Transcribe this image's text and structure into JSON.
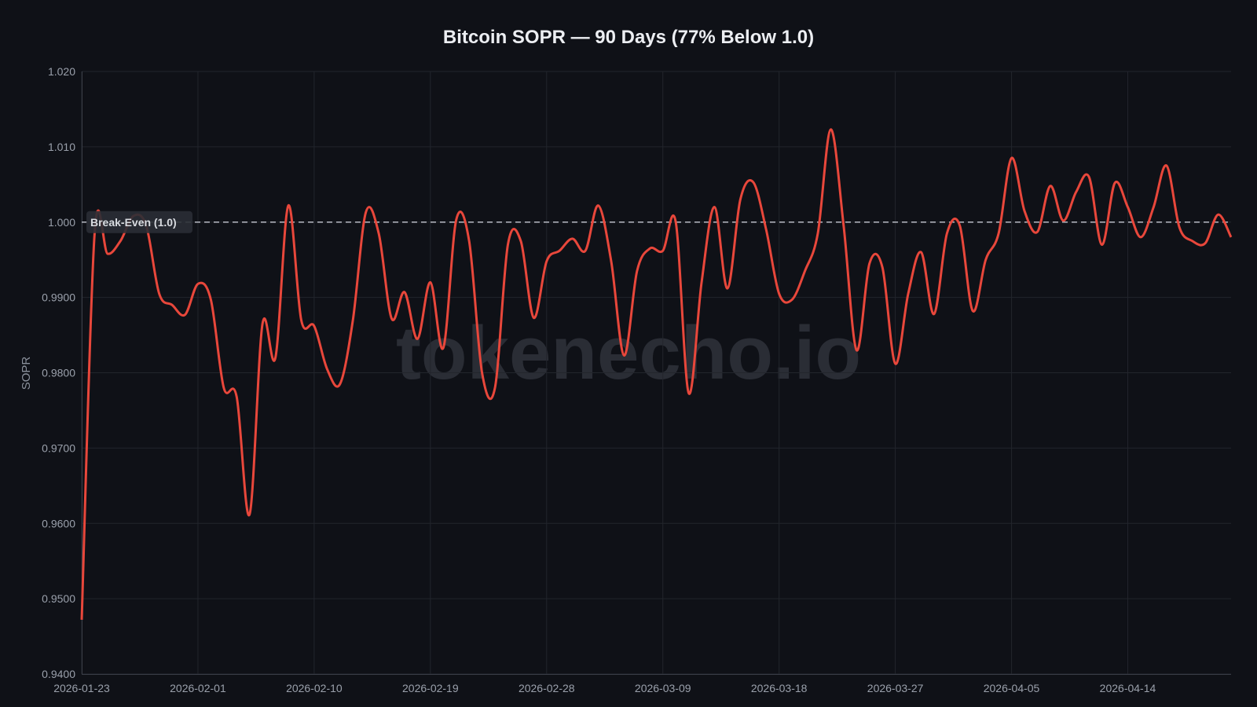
{
  "chart_data": {
    "type": "line",
    "title": "Bitcoin SOPR — 90 Days (77% Below 1.0)",
    "xlabel": "",
    "ylabel": "SOPR",
    "ylim": [
      0.94,
      1.02
    ],
    "grid": true,
    "y_ticks": [
      {
        "value": 1.02,
        "label": "1.020"
      },
      {
        "value": 1.01,
        "label": "1.010"
      },
      {
        "value": 1.0,
        "label": "1.000"
      },
      {
        "value": 0.99,
        "label": "0.9900"
      },
      {
        "value": 0.98,
        "label": "0.9800"
      },
      {
        "value": 0.97,
        "label": "0.9700"
      },
      {
        "value": 0.96,
        "label": "0.9600"
      },
      {
        "value": 0.95,
        "label": "0.9500"
      },
      {
        "value": 0.94,
        "label": "0.9400"
      }
    ],
    "x_ticks": [
      "2026-01-23",
      "2026-02-01",
      "2026-02-10",
      "2026-02-19",
      "2026-02-28",
      "2026-03-09",
      "2026-03-18",
      "2026-03-27",
      "2026-04-05",
      "2026-04-14"
    ],
    "reference_line": {
      "value": 1.0,
      "label": "Break-Even (1.0)",
      "style": "dashed",
      "color": "#b8bcc4"
    },
    "watermark": "tokenecho.io",
    "series": [
      {
        "color": "#e8473b",
        "x": [
          "2026-01-23",
          "2026-01-24",
          "2026-01-25",
          "2026-01-26",
          "2026-01-27",
          "2026-01-28",
          "2026-01-29",
          "2026-01-30",
          "2026-01-31",
          "2026-02-01",
          "2026-02-02",
          "2026-02-03",
          "2026-02-04",
          "2026-02-05",
          "2026-02-06",
          "2026-02-07",
          "2026-02-08",
          "2026-02-09",
          "2026-02-10",
          "2026-02-11",
          "2026-02-12",
          "2026-02-13",
          "2026-02-14",
          "2026-02-15",
          "2026-02-16",
          "2026-02-17",
          "2026-02-18",
          "2026-02-19",
          "2026-02-20",
          "2026-02-21",
          "2026-02-22",
          "2026-02-23",
          "2026-02-24",
          "2026-02-25",
          "2026-02-26",
          "2026-02-27",
          "2026-02-28",
          "2026-03-01",
          "2026-03-02",
          "2026-03-03",
          "2026-03-04",
          "2026-03-05",
          "2026-03-06",
          "2026-03-07",
          "2026-03-08",
          "2026-03-09",
          "2026-03-10",
          "2026-03-11",
          "2026-03-12",
          "2026-03-13",
          "2026-03-14",
          "2026-03-15",
          "2026-03-16",
          "2026-03-17",
          "2026-03-18",
          "2026-03-19",
          "2026-03-20",
          "2026-03-21",
          "2026-03-22",
          "2026-03-23",
          "2026-03-24",
          "2026-03-25",
          "2026-03-26",
          "2026-03-27",
          "2026-03-28",
          "2026-03-29",
          "2026-03-30",
          "2026-03-31",
          "2026-04-01",
          "2026-04-02",
          "2026-04-03",
          "2026-04-04",
          "2026-04-05",
          "2026-04-06",
          "2026-04-07",
          "2026-04-08",
          "2026-04-09",
          "2026-04-10",
          "2026-04-11",
          "2026-04-12",
          "2026-04-13",
          "2026-04-14",
          "2026-04-15",
          "2026-04-16",
          "2026-04-17",
          "2026-04-18",
          "2026-04-19",
          "2026-04-20",
          "2026-04-21",
          "2026-04-22"
        ],
        "values": [
          0.9472,
          0.9985,
          0.9958,
          0.9975,
          1.0008,
          0.9995,
          0.9905,
          0.989,
          0.9877,
          0.9918,
          0.9897,
          0.978,
          0.9768,
          0.9612,
          0.9865,
          0.982,
          1.0022,
          0.987,
          0.9862,
          0.9805,
          0.9785,
          0.987,
          1.0013,
          0.9985,
          0.9872,
          0.9907,
          0.9845,
          0.992,
          0.9833,
          1.0003,
          0.9975,
          0.98,
          0.978,
          0.997,
          0.9975,
          0.9873,
          0.9948,
          0.9962,
          0.9978,
          0.9962,
          1.0022,
          0.9948,
          0.9823,
          0.9935,
          0.9965,
          0.9962,
          1.0,
          0.9773,
          0.992,
          1.002,
          0.9912,
          1.003,
          1.0053,
          0.999,
          0.9905,
          0.9897,
          0.9935,
          0.9985,
          1.0123,
          0.9995,
          0.983,
          0.9945,
          0.994,
          0.9812,
          0.9905,
          0.996,
          0.9878,
          0.9985,
          0.9995,
          0.9882,
          0.995,
          0.9985,
          1.0085,
          1.0015,
          0.9987,
          1.0048,
          1.0002,
          1.004,
          1.006,
          0.997,
          1.0052,
          1.002,
          0.998,
          1.002,
          1.0075,
          0.9993,
          0.9975,
          0.9972,
          1.001,
          0.998
        ]
      }
    ]
  }
}
